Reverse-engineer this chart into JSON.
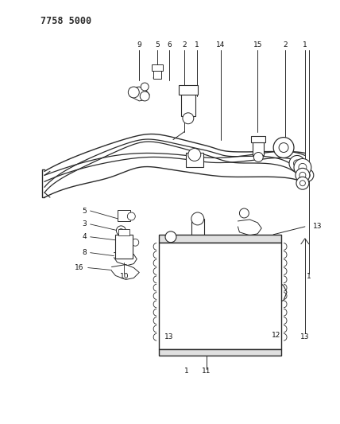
{
  "title": "7758 5000",
  "bg_color": "#ffffff",
  "line_color": "#2a2a2a",
  "label_color": "#111111",
  "label_fontsize": 6.5,
  "figsize": [
    4.28,
    5.33
  ],
  "dpi": 100
}
